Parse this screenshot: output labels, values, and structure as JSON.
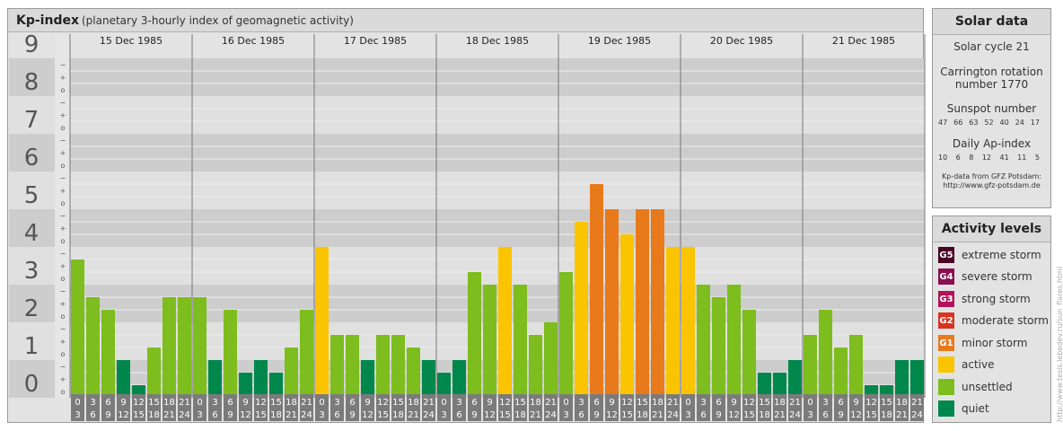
{
  "chart_title": "Kp-index",
  "chart_subtitle": "(planetary 3-hourly index of geomagnetic activity)",
  "chart_data": {
    "type": "bar",
    "title": "Kp-index",
    "subtitle": "(planetary 3-hourly index of geomagnetic activity)",
    "ylim": [
      0,
      9
    ],
    "y_ticks": [
      "0",
      "1",
      "2",
      "3",
      "4",
      "5",
      "6",
      "7",
      "8",
      "9"
    ],
    "y_minor_labels": [
      "o",
      "+",
      "−"
    ],
    "days": [
      "15 Dec 1985",
      "16 Dec 1985",
      "17 Dec 1985",
      "18 Dec 1985",
      "19 Dec 1985",
      "20 Dec 1985",
      "21 Dec 1985"
    ],
    "interval_labels": [
      [
        "0",
        "3"
      ],
      [
        "3",
        "6"
      ],
      [
        "6",
        "9"
      ],
      [
        "9",
        "12"
      ],
      [
        "12",
        "15"
      ],
      [
        "15",
        "18"
      ],
      [
        "18",
        "21"
      ],
      [
        "21",
        "24"
      ]
    ],
    "values": [
      [
        3.667,
        2.667,
        2.333,
        1.0,
        0.333,
        1.333,
        2.667,
        2.667
      ],
      [
        2.667,
        1.0,
        2.333,
        0.667,
        1.0,
        0.667,
        1.333,
        2.333
      ],
      [
        4.0,
        1.667,
        1.667,
        1.0,
        1.667,
        1.667,
        1.333,
        1.0
      ],
      [
        0.667,
        1.0,
        3.333,
        3.0,
        4.0,
        3.0,
        1.667,
        2.0
      ],
      [
        3.333,
        4.667,
        5.667,
        5.0,
        4.333,
        5.0,
        5.0,
        4.0
      ],
      [
        4.0,
        3.0,
        2.667,
        3.0,
        2.333,
        0.667,
        0.667,
        1.0
      ],
      [
        1.667,
        2.333,
        1.333,
        1.667,
        0.333,
        0.333,
        1.0,
        1.0
      ]
    ],
    "color_levels": {
      "quiet": "#00874b",
      "unsettled": "#7dbd1d",
      "active": "#fbc400",
      "G1": "#e87a1c",
      "G2": "#d93421",
      "G3": "#b3135a",
      "G4": "#8a0f50",
      "G5": "#4a0024"
    },
    "grid": true
  },
  "solar": {
    "title": "Solar data",
    "cycle": "Solar cycle 21",
    "carrington_line1": "Carrington rotation",
    "carrington_line2": "number 1770",
    "sunspot_label": "Sunspot number",
    "sunspot_values": [
      "47",
      "66",
      "63",
      "52",
      "40",
      "24",
      "17"
    ],
    "ap_label": "Daily Ap-index",
    "ap_values": [
      "10",
      "6",
      "8",
      "12",
      "41",
      "11",
      "5"
    ],
    "credit_line1": "Kp-data from GFZ Potsdam:",
    "credit_line2": "http://www.gfz-potsdam.de"
  },
  "activity": {
    "title": "Activity levels",
    "items": [
      {
        "badge": "G5",
        "label": "extreme storm",
        "color": "#4a0024"
      },
      {
        "badge": "G4",
        "label": "severe storm",
        "color": "#8a0f50"
      },
      {
        "badge": "G3",
        "label": "strong storm",
        "color": "#b3135a"
      },
      {
        "badge": "G2",
        "label": "moderate storm",
        "color": "#d93421"
      },
      {
        "badge": "G1",
        "label": "minor storm",
        "color": "#e87a1c"
      },
      {
        "badge": "",
        "label": "active",
        "color": "#fbc400"
      },
      {
        "badge": "",
        "label": "unsettled",
        "color": "#7dbd1d"
      },
      {
        "badge": "",
        "label": "quiet",
        "color": "#00874b"
      }
    ]
  },
  "watermark": "http://www.tesis.lebedev.ru/sun_flares.html"
}
